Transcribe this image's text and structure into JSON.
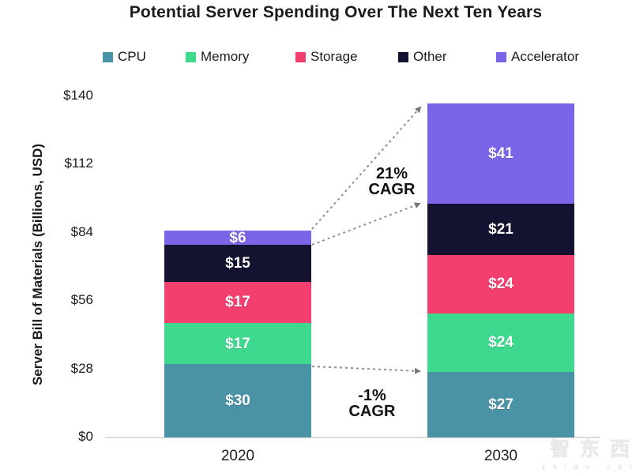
{
  "title": "Potential Server Spending Over The Next Ten Years",
  "chart_data": {
    "type": "bar",
    "stacked": true,
    "title": "Potential Server Spending Over The Next Ten Years",
    "categories": [
      "2020",
      "2030"
    ],
    "series": [
      {
        "name": "CPU",
        "color": "#4A92A6",
        "values": [
          30,
          27
        ]
      },
      {
        "name": "Memory",
        "color": "#3ED98E",
        "values": [
          17,
          24
        ]
      },
      {
        "name": "Storage",
        "color": "#F23F6E",
        "values": [
          17,
          24
        ]
      },
      {
        "name": "Other",
        "color": "#131230",
        "values": [
          15,
          21
        ]
      },
      {
        "name": "Accelerator",
        "color": "#7C64E8",
        "values": [
          6,
          41
        ]
      }
    ],
    "totals": [
      85,
      137
    ],
    "value_prefix": "$",
    "segment_labels": {
      "2020": [
        "$30",
        "$17",
        "$17",
        "$15",
        "$6"
      ],
      "2030": [
        "$27",
        "$24",
        "$24",
        "$21",
        "$41"
      ]
    },
    "ylabel": "Server Bill of Materials (Billions, USD)",
    "yticks": [
      0,
      28,
      56,
      84,
      112,
      140
    ],
    "ytick_labels": [
      "$0",
      "$28",
      "$56",
      "$84",
      "$112",
      "$140"
    ],
    "ylim": [
      0,
      140
    ],
    "grid": false,
    "legend_position": "top",
    "annotations": [
      {
        "lines": [
          "21%",
          "CAGR"
        ],
        "position": "between-bars-upper"
      },
      {
        "lines": [
          "-1%",
          "CAGR"
        ],
        "position": "between-bars-lower"
      }
    ]
  },
  "arrow_color": "#8f8f8f",
  "watermark": {
    "brand": "智东西",
    "site": "z h i d x . c o m"
  }
}
